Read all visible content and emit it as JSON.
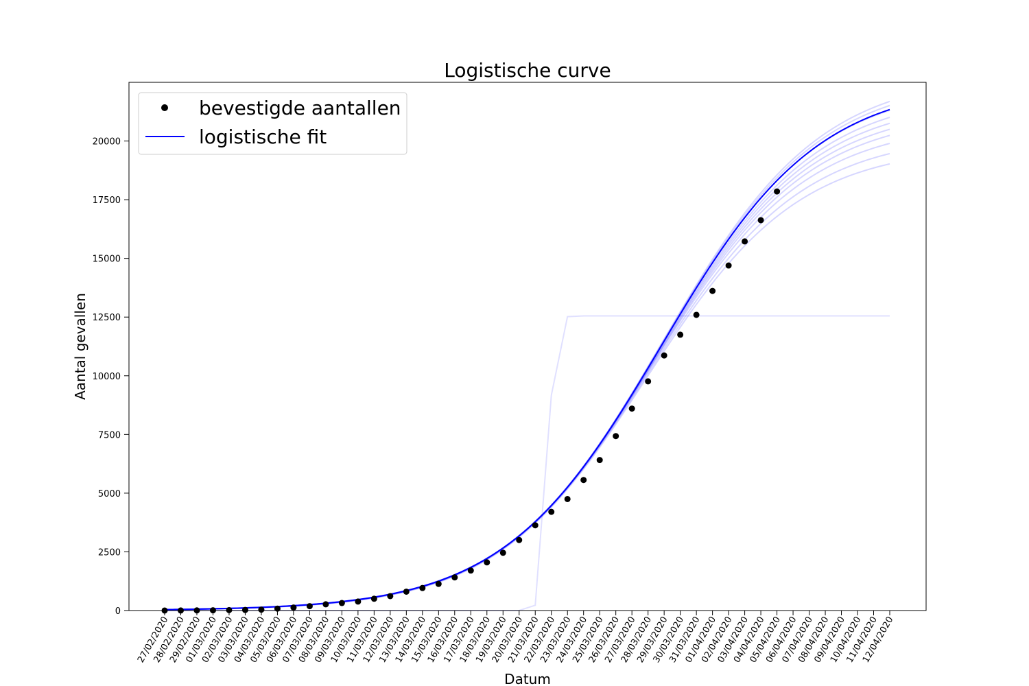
{
  "chart_data": {
    "type": "line",
    "title": "Logistische curve",
    "xlabel": "Datum",
    "ylabel": "Aantal gevallen",
    "categories": [
      "27/02/2020",
      "28/02/2020",
      "29/02/2020",
      "01/03/2020",
      "02/03/2020",
      "03/03/2020",
      "04/03/2020",
      "05/03/2020",
      "06/03/2020",
      "07/03/2020",
      "08/03/2020",
      "09/03/2020",
      "10/03/2020",
      "11/03/2020",
      "12/03/2020",
      "13/03/2020",
      "14/03/2020",
      "15/03/2020",
      "16/03/2020",
      "17/03/2020",
      "18/03/2020",
      "19/03/2020",
      "20/03/2020",
      "21/03/2020",
      "22/03/2020",
      "23/03/2020",
      "24/03/2020",
      "25/03/2020",
      "26/03/2020",
      "27/03/2020",
      "28/03/2020",
      "29/03/2020",
      "30/03/2020",
      "31/03/2020",
      "01/04/2020",
      "02/04/2020",
      "03/04/2020",
      "04/04/2020",
      "05/04/2020",
      "06/04/2020",
      "07/04/2020",
      "08/04/2020",
      "09/04/2020",
      "10/04/2020",
      "11/04/2020",
      "12/04/2020"
    ],
    "ylim": [
      0,
      22500
    ],
    "yticks": [
      0,
      2500,
      5000,
      7500,
      10000,
      12500,
      15000,
      17500,
      20000
    ],
    "grid": false,
    "legend_position": "top-left",
    "colors": {
      "points": "#000000",
      "fit": "#0000ff",
      "sample": "#0000ff"
    },
    "series": [
      {
        "name": "bevestigde aantallen",
        "kind": "scatter",
        "values": [
          1,
          2,
          7,
          10,
          18,
          24,
          38,
          82,
          128,
          188,
          265,
          321,
          382,
          503,
          614,
          804,
          959,
          1135,
          1413,
          1705,
          2051,
          2460,
          3003,
          3631,
          4204,
          4749,
          5560,
          6412,
          7431,
          8603,
          9762,
          10866,
          11750,
          12595,
          13614,
          14697,
          15723,
          16627,
          17851
        ]
      },
      {
        "name": "logistische fit",
        "kind": "line",
        "logistic": {
          "L": 22500,
          "k": 0.205,
          "x0": 30.8
        }
      }
    ],
    "uncertainty_band": {
      "samples": [
        {
          "L": 22900,
          "k": 0.2045,
          "x0": 30.9
        },
        {
          "L": 22700,
          "k": 0.2048,
          "x0": 30.85
        },
        {
          "L": 22450,
          "k": 0.2052,
          "x0": 30.75
        },
        {
          "L": 22100,
          "k": 0.206,
          "x0": 30.65
        },
        {
          "L": 21800,
          "k": 0.2068,
          "x0": 30.55
        },
        {
          "L": 21500,
          "k": 0.2075,
          "x0": 30.45
        },
        {
          "L": 21200,
          "k": 0.208,
          "x0": 30.35
        },
        {
          "L": 20800,
          "k": 0.209,
          "x0": 30.2
        },
        {
          "L": 20300,
          "k": 0.2105,
          "x0": 30.05
        },
        {
          "L": 19800,
          "k": 0.212,
          "x0": 29.9
        }
      ],
      "step_outlier": {
        "L": 12550,
        "k": 5.0,
        "x0": 23.8
      }
    }
  }
}
